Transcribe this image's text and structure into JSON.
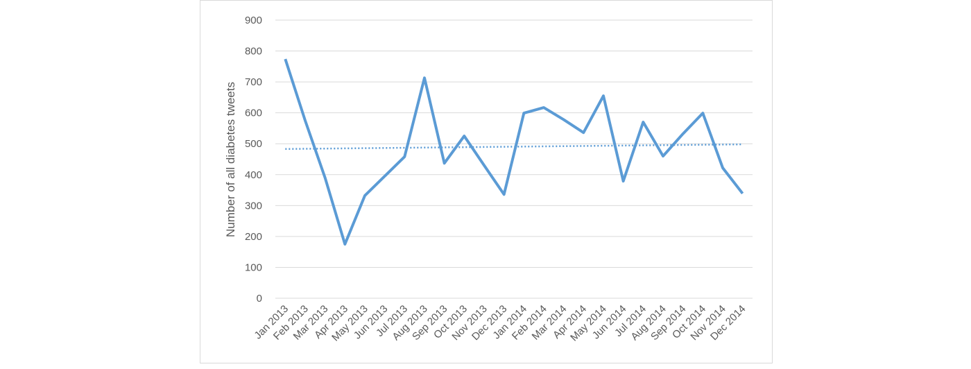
{
  "chart_data": {
    "type": "line",
    "y_label": "Number of all diabetes tweets",
    "categories": [
      "Jan 2013",
      "Feb 2013",
      "Mar 2013",
      "Apr 2013",
      "May 2013",
      "Jun 2013",
      "Jul 2013",
      "Aug 2013",
      "Sep 2013",
      "Oct 2013",
      "Nov 2013",
      "Dec 2013",
      "Jan 2014",
      "Feb 2014",
      "Mar 2014",
      "Apr 2014",
      "May 2014",
      "Jun 2014",
      "Jul 2014",
      "Aug 2014",
      "Sep 2014",
      "Oct 2014",
      "Nov 2014",
      "Dec 2014"
    ],
    "values": [
      774,
      575,
      390,
      175,
      332,
      395,
      458,
      713,
      437,
      525,
      430,
      336,
      599,
      617,
      578,
      536,
      655,
      379,
      570,
      460,
      532,
      599,
      422,
      339
    ],
    "color": "#5b9bd5",
    "trendline": [
      483,
      498
    ],
    "ylim": [
      0,
      900
    ],
    "yticks": [
      0,
      100,
      200,
      300,
      400,
      500,
      600,
      700,
      800,
      900
    ],
    "grid": true
  }
}
